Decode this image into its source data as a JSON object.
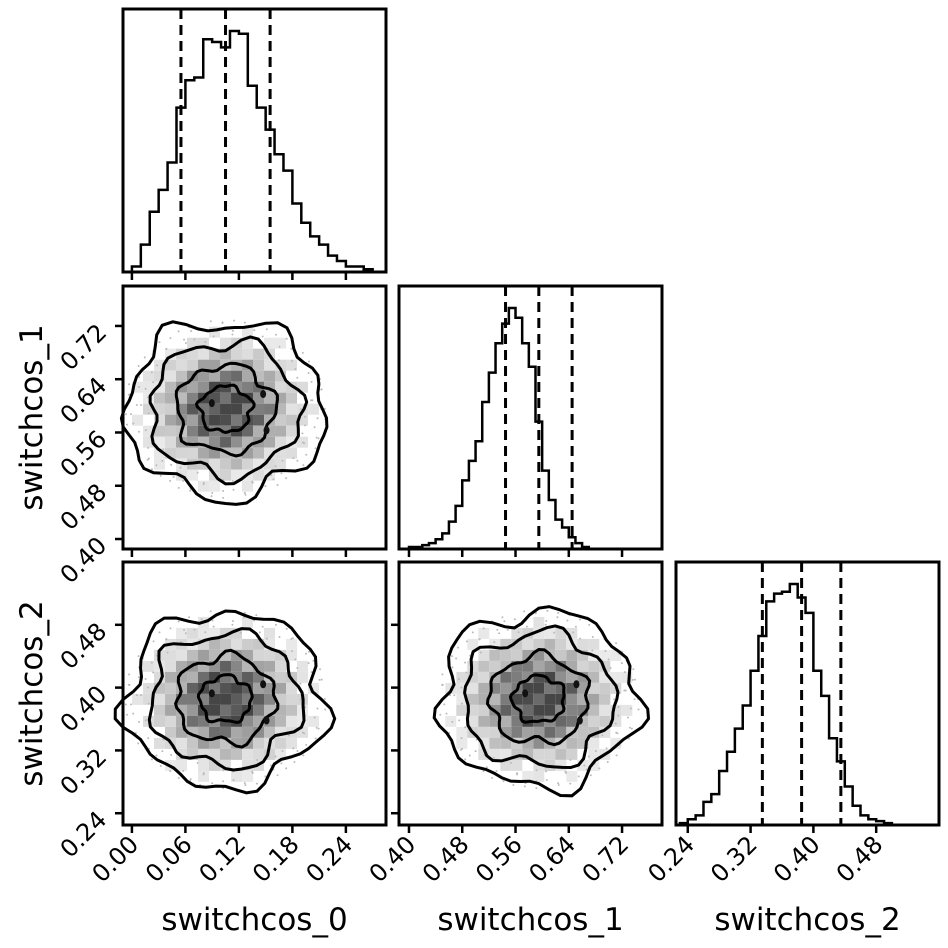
{
  "chart_data": {
    "type": "corner",
    "parameters": [
      "switchcos_0",
      "switchcos_1",
      "switchcos_2"
    ],
    "axis_labels": {
      "x": [
        "switchcos_0",
        "switchcos_1",
        "switchcos_2"
      ],
      "y": [
        "switchcos_1",
        "switchcos_2"
      ]
    },
    "ranges": {
      "switchcos_0": [
        -0.01,
        0.285
      ],
      "switchcos_1": [
        0.385,
        0.78
      ],
      "switchcos_2": [
        0.225,
        0.56
      ]
    },
    "ticks": {
      "switchcos_0": [
        "0.00",
        "0.06",
        "0.12",
        "0.18",
        "0.24"
      ],
      "switchcos_1": [
        "0.40",
        "0.48",
        "0.56",
        "0.64",
        "0.72"
      ],
      "switchcos_2": [
        "0.24",
        "0.32",
        "0.40",
        "0.48"
      ]
    },
    "quantiles": {
      "switchcos_0": [
        0.055,
        0.105,
        0.155
      ],
      "switchcos_1": [
        0.545,
        0.595,
        0.645
      ],
      "switchcos_2": [
        0.335,
        0.385,
        0.435
      ]
    },
    "histograms": {
      "switchcos_0": {
        "x_start": 0.0,
        "bin_width": 0.01,
        "counts": [
          2,
          10,
          22,
          30,
          40,
          60,
          70,
          71,
          85,
          84,
          82,
          88,
          87,
          68,
          60,
          52,
          43,
          37,
          25,
          18,
          13,
          10,
          6,
          4,
          2,
          2,
          1,
          0
        ]
      },
      "switchcos_1": {
        "x_start": 0.39,
        "bin_width": 0.01,
        "counts": [
          0,
          1,
          1,
          2,
          3,
          5,
          8,
          14,
          22,
          35,
          45,
          55,
          75,
          90,
          105,
          115,
          123,
          118,
          105,
          93,
          65,
          40,
          25,
          15,
          11,
          6,
          3,
          1,
          0
        ]
      },
      "switchcos_2": {
        "x_start": 0.23,
        "bin_width": 0.01,
        "counts": [
          1,
          3,
          5,
          12,
          16,
          28,
          38,
          50,
          62,
          80,
          98,
          116,
          120,
          121,
          125,
          118,
          110,
          80,
          67,
          45,
          33,
          20,
          10,
          5,
          3,
          2,
          1,
          0,
          0
        ]
      }
    },
    "contour_means": {
      "switchcos_0 vs switchcos_1": [
        0.105,
        0.595
      ],
      "switchcos_0 vs switchcos_2": [
        0.105,
        0.385
      ],
      "switchcos_1 vs switchcos_2": [
        0.595,
        0.385
      ]
    },
    "contour_levels": 4,
    "grid": false,
    "legend": "none"
  }
}
